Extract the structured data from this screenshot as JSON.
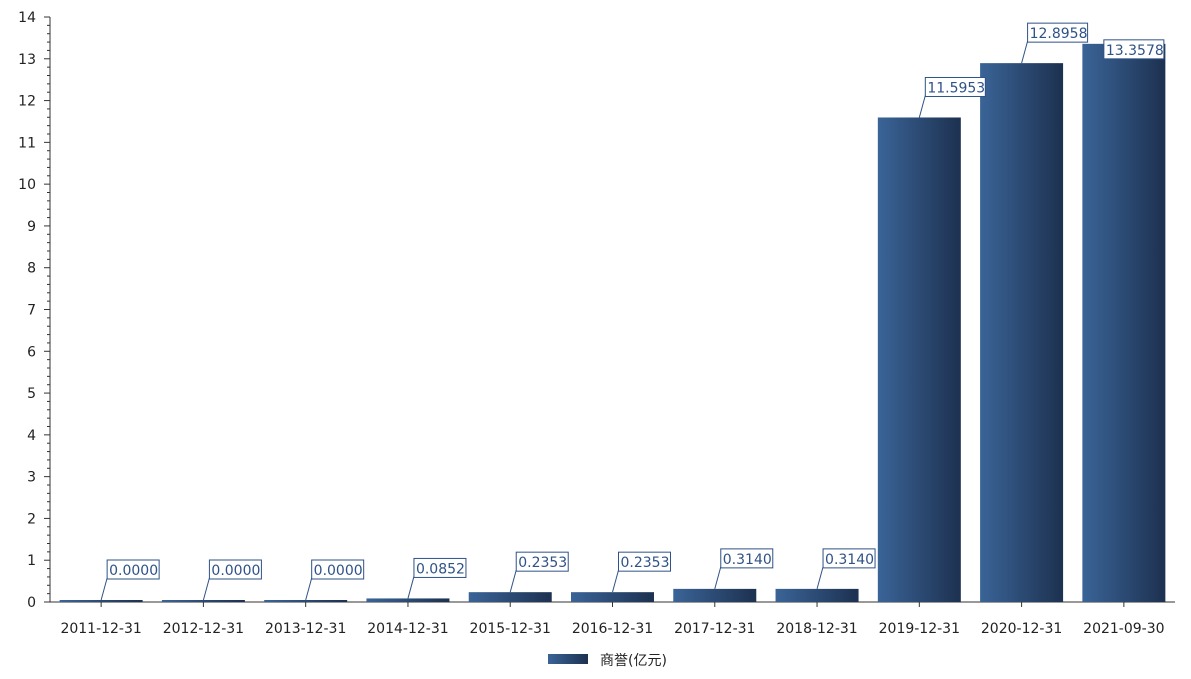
{
  "chart_data": {
    "type": "bar",
    "categories": [
      "2011-12-31",
      "2012-12-31",
      "2013-12-31",
      "2014-12-31",
      "2015-12-31",
      "2016-12-31",
      "2017-12-31",
      "2018-12-31",
      "2019-12-31",
      "2020-12-31",
      "2021-09-30"
    ],
    "series": [
      {
        "name": "商誉(亿元)",
        "values": [
          0.0,
          0.0,
          0.0,
          0.0852,
          0.2353,
          0.2353,
          0.314,
          0.314,
          11.5953,
          12.8958,
          13.3578
        ],
        "labels": [
          "0.0000",
          "0.0000",
          "0.0000",
          "0.0852",
          "0.2353",
          "0.2353",
          "0.3140",
          "0.3140",
          "11.5953",
          "12.8958",
          "13.3578"
        ]
      }
    ],
    "ylim": [
      0,
      14
    ],
    "yticks": [
      0,
      1,
      2,
      3,
      4,
      5,
      6,
      7,
      8,
      9,
      10,
      11,
      12,
      13,
      14
    ],
    "grid": false,
    "legend_position": "bottom-center",
    "colors": {
      "bar_light": "#3a6497",
      "bar_dark": "#1d3150",
      "label": "#2f5287",
      "axis": "#333333"
    }
  }
}
